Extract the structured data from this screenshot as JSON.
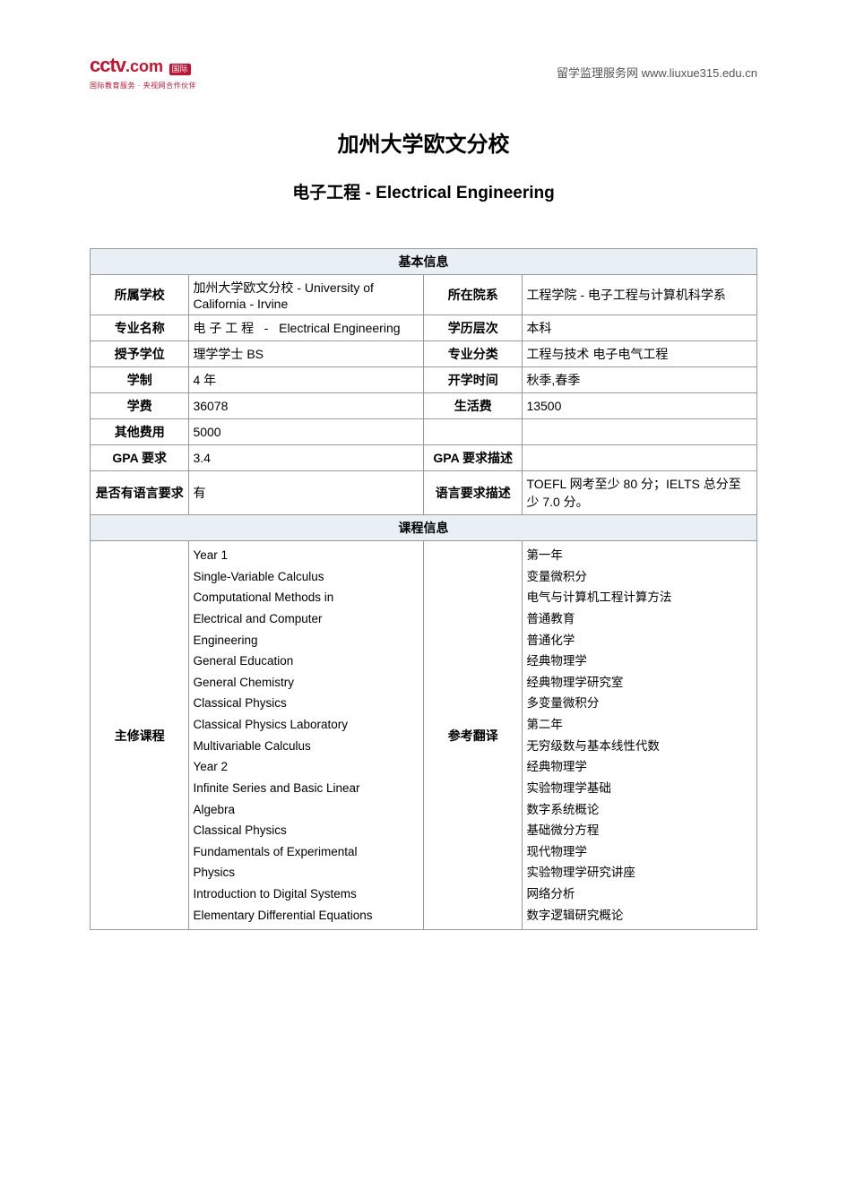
{
  "header": {
    "logo_text": "cctv",
    "logo_com": ".com",
    "logo_cn": "国际",
    "logo_sub": "国际教育服务 · 央视网合作伙伴",
    "right_text": "留学监理服务网 www.liuxue315.edu.cn"
  },
  "title1": "加州大学欧文分校",
  "title2": "电子工程  - Electrical Engineering",
  "section_basic": "基本信息",
  "section_course": "课程信息",
  "labels": {
    "school": "所属学校",
    "department": "所在院系",
    "major": "专业名称",
    "degree_level": "学历层次",
    "degree": "授予学位",
    "category": "专业分类",
    "duration": "学制",
    "start": "开学时间",
    "tuition": "学费",
    "living": "生活费",
    "other": "其他费用",
    "gpa": "GPA 要求",
    "gpa_desc": "GPA 要求描述",
    "lang": "是否有语言要求",
    "lang_desc": "语言要求描述",
    "main_course": "主修课程",
    "translation": "参考翻译"
  },
  "values": {
    "school": "加州大学欧文分校  - University of California - Irvine",
    "department": "工程学院 - 电子工程与计算机科学系",
    "major": "电 子 工 程   -   Electrical Engineering",
    "degree_level": "本科",
    "degree": "理学学士 BS",
    "category": "工程与技术 电子电气工程",
    "duration": "4 年",
    "start": "秋季,春季",
    "tuition": "36078",
    "living": "13500",
    "other": "5000",
    "gpa": "3.4",
    "gpa_desc": "",
    "lang": "有",
    "lang_desc": "TOEFL 网考至少 80 分；IELTS 总分至少 7.0 分。"
  },
  "courses_en": [
    "Year 1",
    "Single-Variable Calculus",
    "Computational    Methods    in",
    "Electrical     and     Computer",
    "Engineering",
    "General Education",
    "General Chemistry",
    "Classical Physics",
    "Classical Physics Laboratory",
    "Multivariable Calculus",
    "Year 2",
    "Infinite Series and Basic Linear",
    "Algebra",
    "Classical Physics",
    "Fundamentals  of  Experimental",
    "Physics",
    "Introduction to Digital Systems",
    "Elementary Differential Equations"
  ],
  "courses_cn": [
    "第一年",
    "变量微积分",
    "电气与计算机工程计算方法",
    "普通教育",
    "普通化学",
    "经典物理学",
    "经典物理学研究室",
    "多变量微积分",
    "第二年",
    "无穷级数与基本线性代数",
    "经典物理学",
    "实验物理学基础",
    "数字系统概论",
    "基础微分方程",
    "现代物理学",
    "实验物理学研究讲座",
    "网络分析",
    "数字逻辑研究概论"
  ]
}
